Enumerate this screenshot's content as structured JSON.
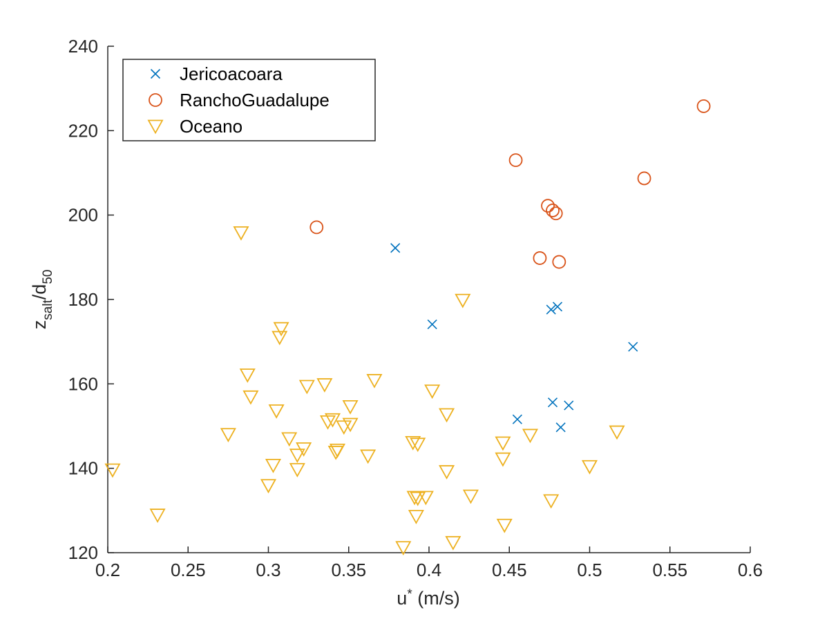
{
  "chart_data": {
    "type": "scatter",
    "title": "",
    "xlabel": {
      "base": "u",
      "sub": "*",
      "suffix": " (m/s)"
    },
    "ylabel": {
      "base1": "z",
      "sub1": "salt",
      "mid": "/d",
      "sub2": "50"
    },
    "xlim": [
      0.2,
      0.6
    ],
    "ylim": [
      120,
      240
    ],
    "xticks": [
      0.2,
      0.25,
      0.3,
      0.35,
      0.4,
      0.45,
      0.5,
      0.55,
      0.6
    ],
    "xtick_labels": [
      "0.2",
      "0.25",
      "0.3",
      "0.35",
      "0.4",
      "0.45",
      "0.5",
      "0.55",
      "0.6"
    ],
    "yticks": [
      120,
      140,
      160,
      180,
      200,
      220,
      240
    ],
    "ytick_labels": [
      "120",
      "140",
      "160",
      "180",
      "200",
      "220",
      "240"
    ],
    "grid": false,
    "legend_position": "top-left",
    "series": [
      {
        "name": "Jericoacoara",
        "marker": "x",
        "color": "#0072BD",
        "x": [
          0.379,
          0.402,
          0.476,
          0.48,
          0.527,
          0.455,
          0.477,
          0.487,
          0.482
        ],
        "y": [
          192.2,
          174.1,
          177.6,
          178.3,
          168.8,
          151.6,
          155.6,
          154.9,
          149.7
        ]
      },
      {
        "name": "RanchoGuadalupe",
        "marker": "circle",
        "color": "#D95319",
        "x": [
          0.33,
          0.454,
          0.474,
          0.477,
          0.479,
          0.469,
          0.481,
          0.534,
          0.571
        ],
        "y": [
          197.1,
          213.0,
          202.2,
          201.1,
          200.4,
          189.8,
          188.9,
          208.7,
          225.8
        ]
      },
      {
        "name": "Oceano",
        "marker": "triangle-down",
        "color": "#EDB120",
        "x": [
          0.283,
          0.203,
          0.231,
          0.275,
          0.287,
          0.289,
          0.3,
          0.303,
          0.305,
          0.307,
          0.308,
          0.313,
          0.318,
          0.318,
          0.322,
          0.324,
          0.335,
          0.337,
          0.34,
          0.342,
          0.343,
          0.347,
          0.351,
          0.351,
          0.362,
          0.366,
          0.384,
          0.39,
          0.391,
          0.392,
          0.393,
          0.393,
          0.398,
          0.402,
          0.411,
          0.411,
          0.415,
          0.421,
          0.426,
          0.446,
          0.446,
          0.447,
          0.463,
          0.476,
          0.5,
          0.517
        ],
        "y": [
          195.8,
          139.6,
          128.9,
          148.0,
          162.1,
          156.9,
          135.9,
          140.7,
          153.6,
          171.0,
          173.1,
          147.0,
          139.7,
          143.1,
          144.6,
          159.4,
          159.8,
          151.0,
          151.5,
          143.8,
          144.3,
          149.8,
          154.6,
          150.4,
          142.9,
          160.8,
          121.2,
          146.1,
          133.1,
          128.6,
          132.9,
          145.7,
          133.1,
          158.3,
          139.2,
          152.7,
          122.4,
          179.8,
          133.4,
          146.0,
          142.2,
          126.5,
          147.8,
          132.3,
          140.4,
          148.6
        ]
      }
    ]
  }
}
